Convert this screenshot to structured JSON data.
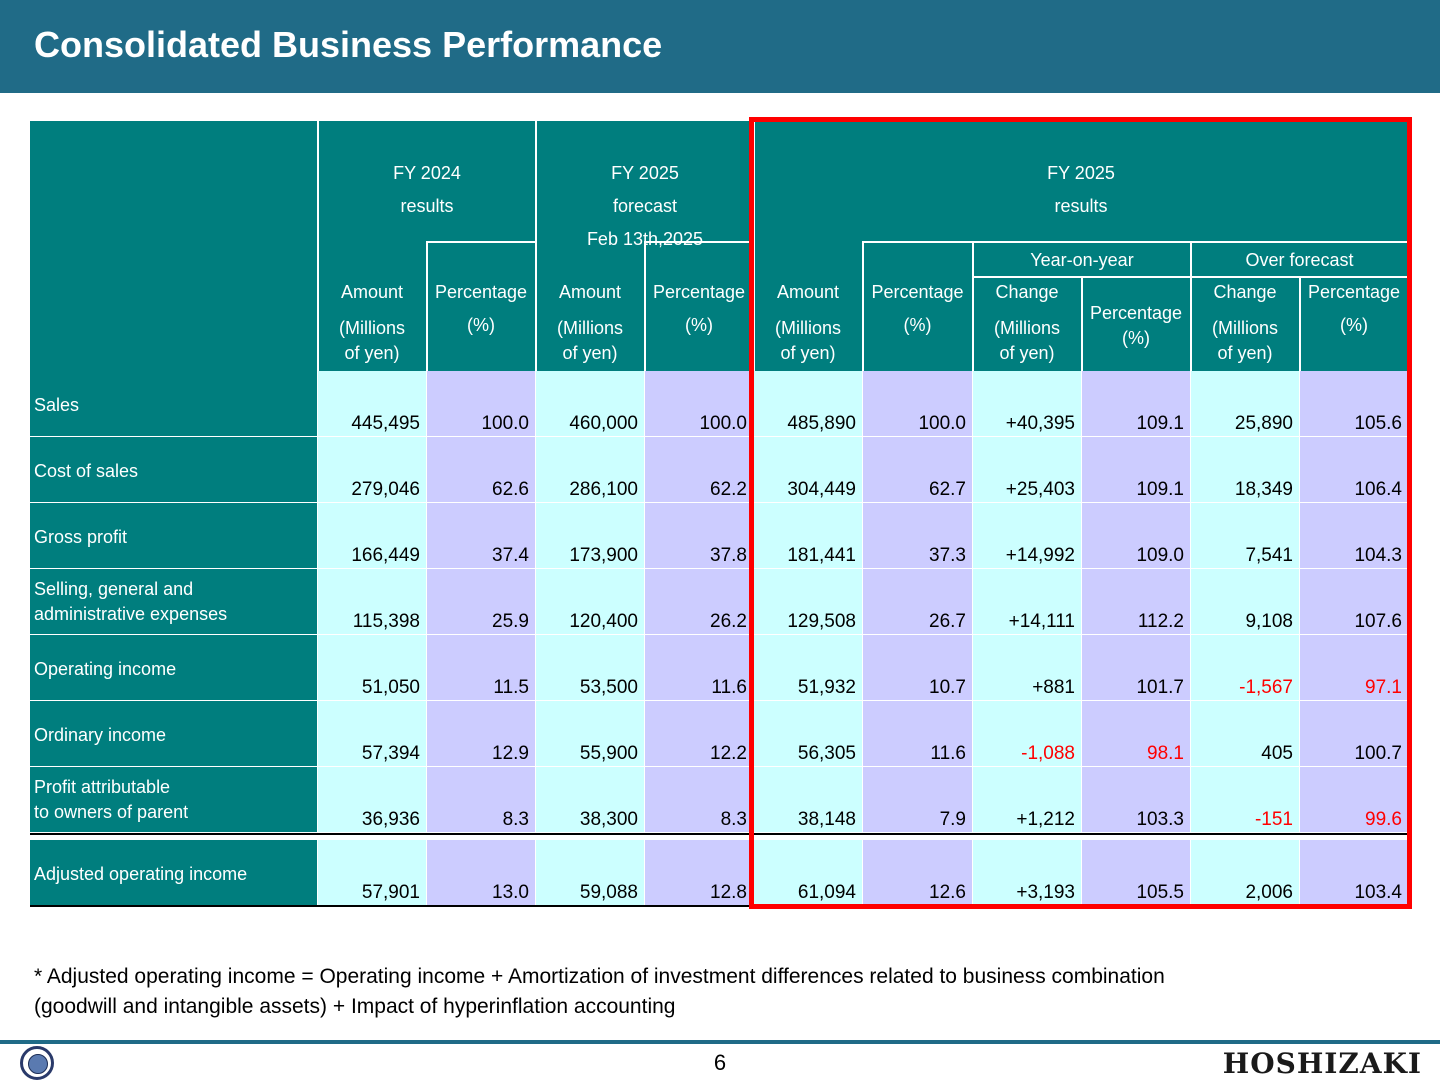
{
  "title": "Consolidated Business Performance",
  "headers": {
    "fy2024_line1": "FY 2024",
    "fy2024_line2": "results",
    "fy2025f_line1": "FY 2025",
    "fy2025f_line2": "forecast",
    "fy2025f_line3": "Feb 13th,2025",
    "fy2025r_line1": "FY 2025",
    "fy2025r_line2": "results",
    "yoy": "Year-on-year",
    "over_forecast": "Over forecast",
    "amount": "Amount",
    "millions_1": "(Millions",
    "millions_2": "of yen)",
    "percentage": "Percentage",
    "pct_unit": "(%)",
    "change": "Change"
  },
  "rows": [
    {
      "label1": "Sales",
      "label2": "",
      "values": [
        "445,495",
        "100.0",
        "460,000",
        "100.0",
        "485,890",
        "100.0",
        "+40,395",
        "109.1",
        "25,890",
        "105.6"
      ],
      "neg": []
    },
    {
      "label1": "Cost of sales",
      "label2": "",
      "values": [
        "279,046",
        "62.6",
        "286,100",
        "62.2",
        "304,449",
        "62.7",
        "+25,403",
        "109.1",
        "18,349",
        "106.4"
      ],
      "neg": []
    },
    {
      "label1": "Gross profit",
      "label2": "",
      "values": [
        "166,449",
        "37.4",
        "173,900",
        "37.8",
        "181,441",
        "37.3",
        "+14,992",
        "109.0",
        "7,541",
        "104.3"
      ],
      "neg": []
    },
    {
      "label1": "Selling, general and",
      "label2": "administrative expenses",
      "values": [
        "115,398",
        "25.9",
        "120,400",
        "26.2",
        "129,508",
        "26.7",
        "+14,111",
        "112.2",
        "9,108",
        "107.6"
      ],
      "neg": []
    },
    {
      "label1": "Operating income",
      "label2": "",
      "values": [
        "51,050",
        "11.5",
        "53,500",
        "11.6",
        "51,932",
        "10.7",
        "+881",
        "101.7",
        "-1,567",
        "97.1"
      ],
      "neg": [
        8,
        9
      ]
    },
    {
      "label1": "Ordinary income",
      "label2": "",
      "values": [
        "57,394",
        "12.9",
        "55,900",
        "12.2",
        "56,305",
        "11.6",
        "-1,088",
        "98.1",
        "405",
        "100.7"
      ],
      "neg": [
        6,
        7
      ]
    },
    {
      "label1": "Profit attributable",
      "label2": "to owners of parent",
      "values": [
        "36,936",
        "8.3",
        "38,300",
        "8.3",
        "38,148",
        "7.9",
        "+1,212",
        "103.3",
        "-151",
        "99.6"
      ],
      "neg": [
        8,
        9
      ]
    },
    {
      "label1": "Adjusted operating income",
      "label2": "",
      "values": [
        "57,901",
        "13.0",
        "59,088",
        "12.8",
        "61,094",
        "12.6",
        "+3,193",
        "105.5",
        "2,006",
        "103.4"
      ],
      "neg": []
    }
  ],
  "note_line1": "* Adjusted operating income = Operating income + Amortization of investment differences related to business combination",
  "note_line2": "(goodwill and intangible assets) + Impact of hyperinflation accounting",
  "page_number": "6",
  "brand": "HOSHIZAKI",
  "colors": {
    "header_bg": "#206b87",
    "table_teal": "#007e7e",
    "amount_cell": "#ccffff",
    "pct_cell": "#ccccff",
    "negative": "#ff0000",
    "highlight": "#ff0000"
  }
}
